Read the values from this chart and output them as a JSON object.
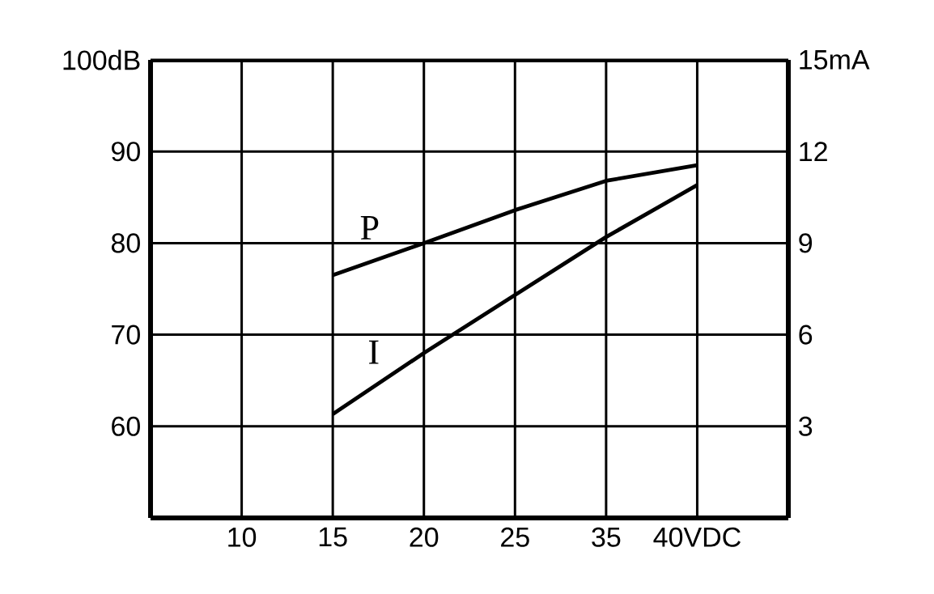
{
  "chart_data": {
    "type": "line",
    "categories": [
      null,
      "10",
      "15",
      "20",
      "25",
      "35",
      "40VDC",
      null
    ],
    "series": [
      {
        "name": "P",
        "color": "#000000",
        "values": [
          null,
          null,
          76.5,
          80,
          83.6,
          86.8,
          88.5,
          null
        ]
      },
      {
        "name": "I",
        "color": "#000000",
        "axis": "y2",
        "values": [
          null,
          null,
          3.4,
          5.4,
          7.3,
          9.2,
          10.9,
          null
        ]
      }
    ],
    "ylim": [
      50,
      100
    ],
    "yticks": [
      60,
      70,
      80,
      90,
      {
        "value": 100,
        "label": "100dB"
      }
    ],
    "y2lim": [
      0,
      15
    ],
    "y2ticks": [
      3,
      6,
      9,
      12,
      {
        "value": 15,
        "label": "15mA"
      }
    ],
    "grid": true
  }
}
